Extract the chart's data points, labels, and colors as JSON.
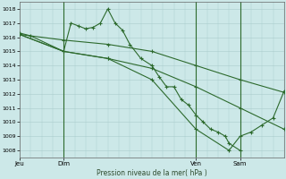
{
  "background_color": "#cce8e8",
  "grid_color": "#aacccc",
  "line_color": "#2d6a2d",
  "text_color": "#2d4a2d",
  "ylim": [
    1007.5,
    1018.5
  ],
  "yticks": [
    1008,
    1009,
    1010,
    1011,
    1012,
    1013,
    1014,
    1015,
    1016,
    1017,
    1018
  ],
  "xlabel": "Pression niveau de la mer( hPa )",
  "xtick_positions": [
    0,
    12,
    48,
    60
  ],
  "xtick_labels": [
    "Jeu",
    "Dim",
    "Ven",
    "Sam"
  ],
  "vlines": [
    12,
    48,
    60
  ],
  "total_hours": 72,
  "series1": {
    "x": [
      0,
      3,
      12,
      14,
      16,
      18,
      20,
      22,
      24,
      26,
      28,
      30,
      33,
      36,
      38,
      40,
      42,
      44,
      46,
      48,
      50,
      52,
      54,
      56,
      57,
      60
    ],
    "y": [
      1016.3,
      1016.1,
      1015.0,
      1017.0,
      1016.8,
      1016.6,
      1016.7,
      1017.0,
      1018.0,
      1017.0,
      1016.5,
      1015.5,
      1014.5,
      1014.0,
      1013.2,
      1012.5,
      1012.5,
      1011.6,
      1011.2,
      1010.5,
      1010.0,
      1009.5,
      1009.3,
      1009.0,
      1008.5,
      1008.0
    ]
  },
  "series2": {
    "x": [
      0,
      12,
      24,
      36,
      48,
      60,
      72
    ],
    "y": [
      1016.2,
      1015.8,
      1015.5,
      1015.0,
      1014.0,
      1013.0,
      1012.1
    ]
  },
  "series3": {
    "x": [
      0,
      12,
      24,
      36,
      48,
      60,
      72
    ],
    "y": [
      1016.2,
      1015.0,
      1014.5,
      1013.8,
      1012.5,
      1011.0,
      1009.5
    ]
  },
  "series4": {
    "x": [
      0,
      12,
      24,
      36,
      48,
      57,
      60,
      63,
      66,
      69,
      72
    ],
    "y": [
      1016.2,
      1015.0,
      1014.5,
      1013.0,
      1009.5,
      1008.0,
      1009.0,
      1009.3,
      1009.8,
      1010.3,
      1012.2
    ]
  }
}
